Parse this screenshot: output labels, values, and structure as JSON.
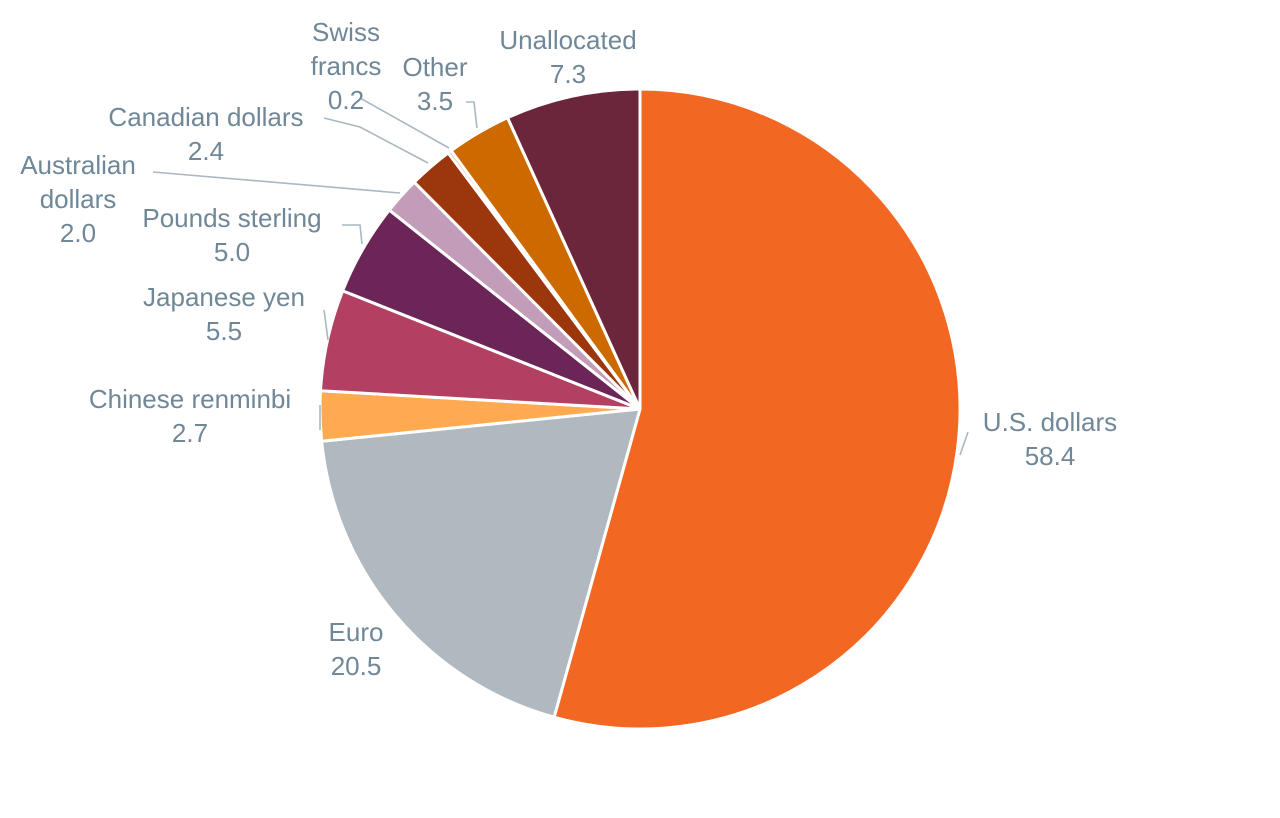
{
  "chart_data": {
    "type": "pie",
    "title": "",
    "start_angle_deg": 0,
    "direction": "clockwise",
    "slices": [
      {
        "label_lines": [
          "U.S. dollars"
        ],
        "value": 58.4,
        "value_label": "58.4",
        "color": "#f26722"
      },
      {
        "label_lines": [
          "Euro"
        ],
        "value": 20.5,
        "value_label": "20.5",
        "color": "#afb9bf"
      },
      {
        "label_lines": [
          "Chinese renminbi"
        ],
        "value": 2.7,
        "value_label": "2.7",
        "color": "#ffaa50"
      },
      {
        "label_lines": [
          "Japanese yen"
        ],
        "value": 5.5,
        "value_label": "5.5",
        "color": "#b33f62"
      },
      {
        "label_lines": [
          "Pounds sterling"
        ],
        "value": 5.0,
        "value_label": "5.0",
        "color": "#6b2657"
      },
      {
        "label_lines": [
          "Australian",
          "dollars"
        ],
        "value": 2.0,
        "value_label": "2.0",
        "color": "#c29cb8"
      },
      {
        "label_lines": [
          "Canadian dollars"
        ],
        "value": 2.4,
        "value_label": "2.4",
        "color": "#9c360d"
      },
      {
        "label_lines": [
          "Swiss",
          "francs"
        ],
        "value": 0.2,
        "value_label": "0.2",
        "color": "#e8b070"
      },
      {
        "label_lines": [
          "Other"
        ],
        "value": 3.5,
        "value_label": "3.5",
        "color": "#cc6a00"
      },
      {
        "label_lines": [
          "Unallocated"
        ],
        "value": 7.3,
        "value_label": "7.3",
        "color": "#6c263b"
      }
    ]
  }
}
